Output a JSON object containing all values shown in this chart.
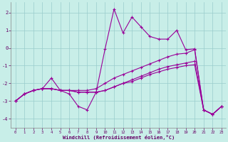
{
  "xlabel": "Windchill (Refroidissement éolien,°C)",
  "background_color": "#c8eee8",
  "grid_color": "#99cccc",
  "line_color": "#990099",
  "xlim": [
    -0.5,
    23.5
  ],
  "ylim": [
    -4.5,
    2.6
  ],
  "yticks": [
    -4,
    -3,
    -2,
    -1,
    0,
    1,
    2
  ],
  "xticks": [
    0,
    1,
    2,
    3,
    4,
    5,
    6,
    7,
    8,
    9,
    10,
    11,
    12,
    13,
    14,
    15,
    16,
    17,
    18,
    19,
    20,
    21,
    22,
    23
  ],
  "line1_x": [
    0,
    1,
    2,
    3,
    4,
    5,
    6,
    7,
    8,
    9,
    10,
    11,
    12,
    13,
    14,
    15,
    16,
    17,
    18,
    19,
    20,
    21,
    22,
    23
  ],
  "line1_y": [
    -3.0,
    -2.6,
    -2.4,
    -2.3,
    -1.7,
    -2.4,
    -2.6,
    -3.3,
    -3.5,
    -2.5,
    -0.05,
    2.2,
    0.85,
    1.75,
    1.2,
    0.65,
    0.5,
    0.5,
    1.0,
    -0.1,
    -0.05,
    -3.5,
    -3.75,
    -3.3
  ],
  "line2_x": [
    0,
    1,
    2,
    3,
    4,
    5,
    6,
    7,
    8,
    9,
    10,
    11,
    12,
    13,
    14,
    15,
    16,
    17,
    18,
    19,
    20,
    21,
    22,
    23
  ],
  "line2_y": [
    -3.0,
    -2.6,
    -2.4,
    -2.3,
    -2.3,
    -2.4,
    -2.4,
    -2.4,
    -2.4,
    -2.3,
    -2.0,
    -1.7,
    -1.5,
    -1.3,
    -1.1,
    -0.9,
    -0.7,
    -0.5,
    -0.35,
    -0.3,
    -0.1,
    -3.5,
    -3.75,
    -3.3
  ],
  "line3_x": [
    0,
    1,
    2,
    3,
    4,
    5,
    6,
    7,
    8,
    9,
    10,
    11,
    12,
    13,
    14,
    15,
    16,
    17,
    18,
    19,
    20,
    21,
    22,
    23
  ],
  "line3_y": [
    -3.0,
    -2.6,
    -2.4,
    -2.3,
    -2.3,
    -2.4,
    -2.4,
    -2.5,
    -2.5,
    -2.5,
    -2.4,
    -2.2,
    -2.0,
    -1.8,
    -1.6,
    -1.4,
    -1.2,
    -1.05,
    -0.95,
    -0.85,
    -0.75,
    -3.5,
    -3.75,
    -3.3
  ],
  "line4_x": [
    0,
    1,
    2,
    3,
    4,
    5,
    6,
    7,
    8,
    9,
    10,
    11,
    12,
    13,
    14,
    15,
    16,
    17,
    18,
    19,
    20,
    21,
    22,
    23
  ],
  "line4_y": [
    -3.0,
    -2.6,
    -2.4,
    -2.3,
    -2.3,
    -2.4,
    -2.4,
    -2.5,
    -2.5,
    -2.5,
    -2.4,
    -2.2,
    -2.0,
    -1.9,
    -1.7,
    -1.5,
    -1.35,
    -1.2,
    -1.1,
    -1.0,
    -0.95,
    -3.5,
    -3.75,
    -3.3
  ]
}
